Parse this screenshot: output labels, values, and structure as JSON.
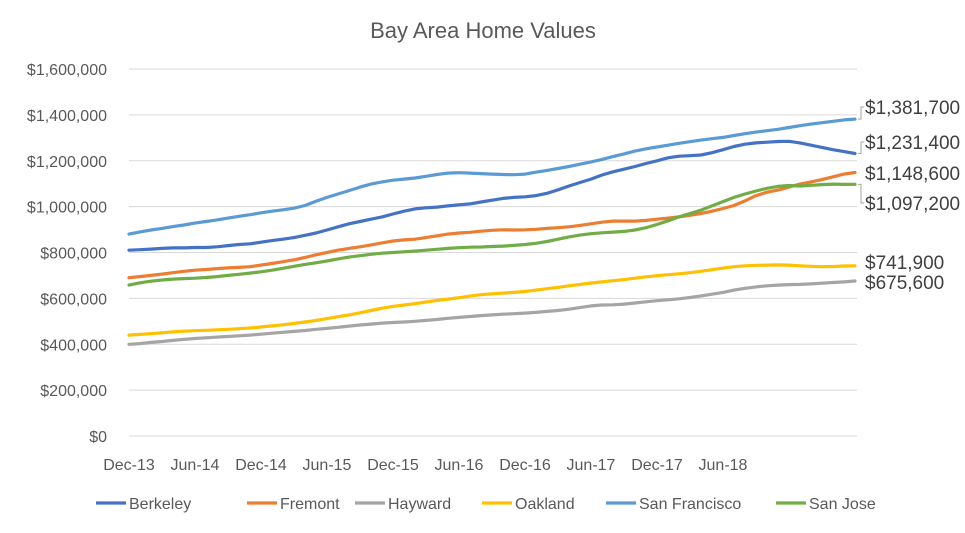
{
  "chart_data": {
    "type": "line",
    "title": "Bay Area Home Values",
    "xlabel": "",
    "ylabel": "",
    "ylim": [
      0,
      1600000
    ],
    "y_ticks": [
      0,
      200000,
      400000,
      600000,
      800000,
      1000000,
      1200000,
      1400000,
      1600000
    ],
    "y_tick_labels": [
      "$0",
      "$200,000",
      "$400,000",
      "$600,000",
      "$800,000",
      "$1,000,000",
      "$1,200,000",
      "$1,400,000",
      "$1,600,000"
    ],
    "x_tick_labels": [
      "Dec-13",
      "Jun-14",
      "Dec-14",
      "Jun-15",
      "Dec-15",
      "Jun-16",
      "Dec-16",
      "Jun-17",
      "Dec-17",
      "Jun-18"
    ],
    "x_start": "Dec-13",
    "x_end": "Nov-18",
    "grid": true,
    "legend_position": "bottom",
    "series": [
      {
        "name": "Berkeley",
        "color": "#4472C4",
        "end_label": "$1,231,400",
        "values": [
          810000,
          812000,
          815000,
          818000,
          820000,
          820000,
          822000,
          822000,
          825000,
          830000,
          835000,
          838000,
          845000,
          852000,
          858000,
          865000,
          875000,
          885000,
          898000,
          912000,
          925000,
          935000,
          945000,
          955000,
          968000,
          980000,
          990000,
          995000,
          998000,
          1003000,
          1008000,
          1012000,
          1020000,
          1028000,
          1036000,
          1040000,
          1043000,
          1048000,
          1058000,
          1073000,
          1090000,
          1105000,
          1120000,
          1138000,
          1152000,
          1163000,
          1175000,
          1188000,
          1200000,
          1213000,
          1220000,
          1222000,
          1225000,
          1235000,
          1248000,
          1262000,
          1272000,
          1278000,
          1281000,
          1284000,
          1285000,
          1278000,
          1268000,
          1258000,
          1248000,
          1240000,
          1231400
        ]
      },
      {
        "name": "Fremont",
        "color": "#ED7D31",
        "end_label": "$1,148,600",
        "values": [
          690000,
          695000,
          700000,
          706000,
          712000,
          718000,
          723000,
          726000,
          730000,
          733000,
          735000,
          738000,
          745000,
          752000,
          760000,
          768000,
          778000,
          790000,
          800000,
          810000,
          818000,
          825000,
          833000,
          842000,
          850000,
          855000,
          858000,
          865000,
          873000,
          880000,
          885000,
          888000,
          893000,
          897000,
          899000,
          898000,
          899000,
          901000,
          905000,
          908000,
          912000,
          918000,
          925000,
          932000,
          937000,
          937000,
          937000,
          940000,
          945000,
          950000,
          955000,
          962000,
          970000,
          980000,
          992000,
          1005000,
          1025000,
          1048000,
          1063000,
          1072000,
          1085000,
          1098000,
          1108000,
          1118000,
          1130000,
          1142000,
          1148600
        ]
      },
      {
        "name": "Hayward",
        "color": "#A5A5A5",
        "end_label": "$675,600",
        "values": [
          400000,
          403000,
          408000,
          412000,
          417000,
          421000,
          425000,
          428000,
          431000,
          434000,
          437000,
          440000,
          444000,
          448000,
          452000,
          456000,
          460000,
          465000,
          469000,
          474000,
          479000,
          484000,
          488000,
          492000,
          495000,
          497000,
          500000,
          504000,
          508000,
          513000,
          517000,
          521000,
          525000,
          528000,
          531000,
          533000,
          536000,
          539000,
          543000,
          547000,
          553000,
          560000,
          567000,
          571000,
          572000,
          575000,
          580000,
          585000,
          590000,
          594000,
          598000,
          604000,
          611000,
          618000,
          626000,
          636000,
          644000,
          650000,
          655000,
          658000,
          660000,
          661000,
          663000,
          666000,
          669000,
          672000,
          675600
        ]
      },
      {
        "name": "Oakland",
        "color": "#FFC000",
        "end_label": "$741,900",
        "values": [
          440000,
          443000,
          446000,
          450000,
          454000,
          457000,
          459000,
          461000,
          463000,
          465000,
          468000,
          471000,
          475000,
          480000,
          485000,
          491000,
          497000,
          504000,
          512000,
          520000,
          528000,
          537000,
          547000,
          557000,
          565000,
          571000,
          577000,
          584000,
          591000,
          597000,
          603000,
          610000,
          616000,
          620000,
          623000,
          626000,
          630000,
          636000,
          642000,
          648000,
          655000,
          661000,
          667000,
          672000,
          677000,
          682000,
          688000,
          694000,
          699000,
          703000,
          707000,
          712000,
          718000,
          725000,
          732000,
          738000,
          742000,
          744000,
          745000,
          746000,
          745000,
          742000,
          740000,
          738000,
          739000,
          741000,
          741900
        ]
      },
      {
        "name": "San Francisco",
        "color": "#5B9BD5",
        "end_label": "$1,381,700",
        "values": [
          880000,
          890000,
          898000,
          905000,
          913000,
          920000,
          928000,
          935000,
          942000,
          950000,
          958000,
          965000,
          973000,
          980000,
          986000,
          993000,
          1005000,
          1023000,
          1040000,
          1055000,
          1070000,
          1085000,
          1098000,
          1108000,
          1115000,
          1120000,
          1125000,
          1132000,
          1140000,
          1146000,
          1148000,
          1146000,
          1144000,
          1142000,
          1140000,
          1139000,
          1142000,
          1150000,
          1158000,
          1166000,
          1175000,
          1185000,
          1195000,
          1206000,
          1218000,
          1230000,
          1242000,
          1252000,
          1260000,
          1268000,
          1276000,
          1283000,
          1290000,
          1296000,
          1302000,
          1310000,
          1318000,
          1325000,
          1331000,
          1337000,
          1345000,
          1353000,
          1360000,
          1366000,
          1372000,
          1378000,
          1381700
        ]
      },
      {
        "name": "San Jose",
        "color": "#70AD47",
        "end_label": "$1,097,200",
        "values": [
          658000,
          668000,
          675000,
          680000,
          684000,
          686000,
          688000,
          691000,
          695000,
          700000,
          705000,
          710000,
          716000,
          723000,
          731000,
          740000,
          748000,
          755000,
          763000,
          772000,
          780000,
          786000,
          792000,
          797000,
          800000,
          803000,
          806000,
          810000,
          814000,
          818000,
          821000,
          823000,
          824000,
          826000,
          828000,
          831000,
          835000,
          840000,
          848000,
          858000,
          868000,
          876000,
          882000,
          886000,
          889000,
          892000,
          898000,
          908000,
          922000,
          938000,
          955000,
          970000,
          985000,
          1003000,
          1022000,
          1040000,
          1055000,
          1068000,
          1080000,
          1088000,
          1092000,
          1090000,
          1093000,
          1096000,
          1098000,
          1097000,
          1097200
        ]
      }
    ]
  }
}
